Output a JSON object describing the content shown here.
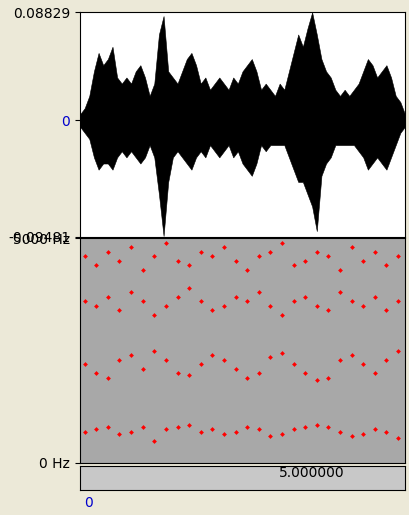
{
  "chart_data": [
    {
      "type": "area",
      "color": "#000000",
      "x": [
        0.0,
        0.1,
        0.2,
        0.3,
        0.4,
        0.5,
        0.6,
        0.7,
        0.8,
        0.9,
        1.0,
        1.1,
        1.2,
        1.3,
        1.4,
        1.5,
        1.6,
        1.7,
        1.8,
        1.9,
        2.0,
        2.1,
        2.2,
        2.3,
        2.4,
        2.5,
        2.6,
        2.7,
        2.8,
        2.9,
        3.0,
        3.1,
        3.2,
        3.3,
        3.4,
        3.5,
        3.6,
        3.7,
        3.8,
        3.9,
        4.0,
        4.1,
        4.2,
        4.3,
        4.4,
        4.5,
        4.6,
        4.7,
        4.8,
        4.9,
        5.0,
        5.1,
        5.2,
        5.3,
        5.4,
        5.5,
        5.6,
        5.7,
        5.8,
        5.9,
        6.0,
        6.1,
        6.2,
        6.3,
        6.4,
        6.5,
        6.6,
        6.7,
        6.8,
        6.9,
        7.0
      ],
      "max": [
        0.005,
        0.01,
        0.02,
        0.04,
        0.055,
        0.045,
        0.05,
        0.06,
        0.035,
        0.03,
        0.035,
        0.03,
        0.04,
        0.045,
        0.035,
        0.02,
        0.03,
        0.07,
        0.085,
        0.04,
        0.035,
        0.03,
        0.04,
        0.05,
        0.055,
        0.045,
        0.03,
        0.035,
        0.025,
        0.03,
        0.035,
        0.03,
        0.025,
        0.035,
        0.03,
        0.04,
        0.045,
        0.05,
        0.04,
        0.025,
        0.03,
        0.025,
        0.02,
        0.03,
        0.025,
        0.04,
        0.055,
        0.07,
        0.06,
        0.075,
        0.088,
        0.07,
        0.05,
        0.04,
        0.035,
        0.025,
        0.02,
        0.025,
        0.02,
        0.025,
        0.03,
        0.04,
        0.05,
        0.045,
        0.035,
        0.04,
        0.045,
        0.035,
        0.02,
        0.015,
        0.005
      ],
      "min": [
        -0.005,
        -0.01,
        -0.015,
        -0.03,
        -0.04,
        -0.035,
        -0.035,
        -0.04,
        -0.03,
        -0.025,
        -0.03,
        -0.025,
        -0.03,
        -0.035,
        -0.03,
        -0.02,
        -0.03,
        -0.06,
        -0.094,
        -0.05,
        -0.03,
        -0.025,
        -0.03,
        -0.035,
        -0.04,
        -0.03,
        -0.025,
        -0.03,
        -0.02,
        -0.025,
        -0.03,
        -0.025,
        -0.02,
        -0.03,
        -0.025,
        -0.035,
        -0.04,
        -0.045,
        -0.035,
        -0.02,
        -0.025,
        -0.02,
        -0.02,
        -0.02,
        -0.02,
        -0.03,
        -0.04,
        -0.05,
        -0.05,
        -0.06,
        -0.07,
        -0.09,
        -0.045,
        -0.035,
        -0.03,
        -0.02,
        -0.02,
        -0.02,
        -0.02,
        -0.02,
        -0.025,
        -0.03,
        -0.04,
        -0.035,
        -0.03,
        -0.035,
        -0.04,
        -0.03,
        -0.02,
        -0.01,
        -0.005
      ],
      "xlim": [
        0,
        7.0
      ],
      "ylim": [
        -0.09481,
        0.08829
      ],
      "yticks": [
        -0.09481,
        0,
        0.08829
      ],
      "tick_labels": "y"
    },
    {
      "type": "scatter",
      "color": "#ff0000",
      "marker": "diamond",
      "x": [
        0.1,
        0.35,
        0.6,
        0.85,
        1.1,
        1.35,
        1.6,
        1.85,
        2.1,
        2.35,
        2.6,
        2.85,
        3.1,
        3.35,
        3.6,
        3.85,
        4.1,
        4.35,
        4.6,
        4.85,
        5.1,
        5.35,
        5.6,
        5.85,
        6.1,
        6.35,
        6.6,
        6.85,
        0.1,
        0.35,
        0.6,
        0.85,
        1.1,
        1.35,
        1.6,
        1.85,
        2.1,
        2.35,
        2.6,
        2.85,
        3.1,
        3.35,
        3.6,
        3.85,
        4.1,
        4.35,
        4.6,
        4.85,
        5.1,
        5.35,
        5.6,
        5.85,
        6.1,
        6.35,
        6.6,
        6.85,
        0.1,
        0.35,
        0.6,
        0.85,
        1.1,
        1.35,
        1.6,
        1.85,
        2.1,
        2.35,
        2.6,
        2.85,
        3.1,
        3.35,
        3.6,
        3.85,
        4.1,
        4.35,
        4.6,
        4.85,
        5.1,
        5.35,
        5.6,
        5.85,
        6.1,
        6.35,
        6.6,
        6.85,
        0.1,
        0.35,
        0.6,
        0.85,
        1.1,
        1.35,
        1.6,
        1.85,
        2.1,
        2.35,
        2.6,
        2.85,
        3.1,
        3.35,
        3.6,
        3.85,
        4.1,
        4.35,
        4.6,
        4.85,
        5.1,
        5.35,
        5.6,
        5.85,
        6.1,
        6.35,
        6.6,
        6.85
      ],
      "values": [
        700,
        750,
        800,
        650,
        700,
        800,
        500,
        750,
        800,
        850,
        700,
        750,
        650,
        700,
        800,
        750,
        600,
        650,
        750,
        800,
        850,
        800,
        700,
        600,
        650,
        750,
        700,
        550,
        2200,
        2000,
        1900,
        2300,
        2400,
        2100,
        2500,
        2300,
        2000,
        1950,
        2200,
        2400,
        2300,
        2100,
        1900,
        2000,
        2350,
        2450,
        2200,
        2000,
        1850,
        1900,
        2300,
        2400,
        2200,
        2000,
        2300,
        2500,
        3600,
        3500,
        3700,
        3400,
        3800,
        3600,
        3300,
        3500,
        3700,
        3900,
        3600,
        3400,
        3500,
        3700,
        3600,
        3800,
        3500,
        3300,
        3600,
        3700,
        3500,
        3400,
        3800,
        3600,
        3500,
        3700,
        3400,
        3600,
        4600,
        4400,
        4700,
        4500,
        4800,
        4300,
        4600,
        4900,
        4500,
        4400,
        4700,
        4600,
        4800,
        4500,
        4300,
        4600,
        4700,
        4900,
        4400,
        4500,
        4700,
        4600,
        4300,
        4800,
        4500,
        4700,
        4400,
        4600
      ],
      "xlim": [
        0,
        7.0
      ],
      "ylim": [
        0,
        5000
      ],
      "yticks": [
        {
          "value": 0,
          "label": "0 Hz"
        },
        {
          "value": 5000,
          "label": "5000 Hz"
        }
      ],
      "tick_labels": "y"
    },
    {
      "type": "axis",
      "xlim": [
        0,
        7.0
      ],
      "xticks": [
        {
          "value": 5,
          "label": "5.000000"
        }
      ],
      "annotations": [
        "0"
      ]
    }
  ]
}
